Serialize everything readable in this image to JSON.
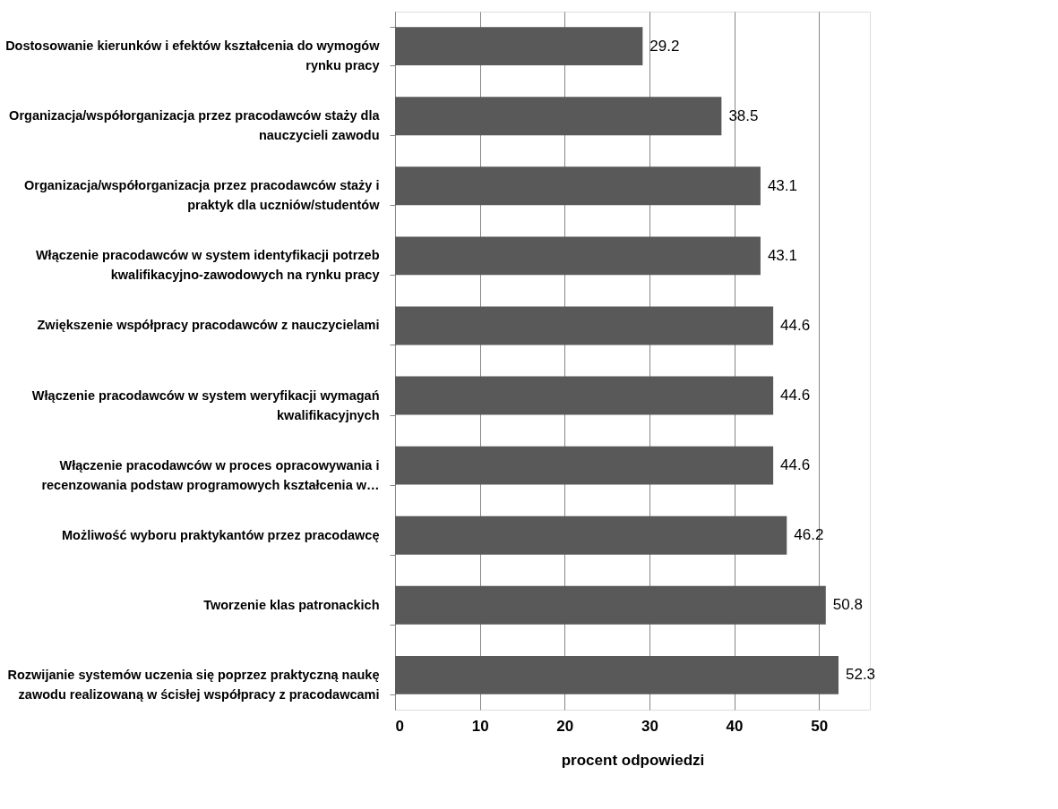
{
  "chart_data": {
    "type": "bar",
    "orientation": "horizontal",
    "xlabel": "procent odpowiedzi",
    "categories": [
      "Dostosowanie kierunków i efektów kształcenia do wymogów\nrynku pracy",
      "Organizacja/współorganizacja przez pracodawców staży dla\nnauczycieli zawodu",
      "Organizacja/współorganizacja przez pracodawców staży i\npraktyk dla uczniów/studentów",
      "Włączenie pracodawców w system identyfikacji potrzeb\nkwalifikacyjno-zawodowych na rynku pracy",
      "Zwiększenie współpracy pracodawców z nauczycielami",
      "Włączenie pracodawców w system weryfikacji wymagań\nkwalifikacyjnych",
      "Włączenie pracodawców w proces opracowywania i\nrecenzowania podstaw programowych kształcenia w…",
      "Możliwość wyboru praktykantów przez pracodawcę",
      "Tworzenie klas patronackich",
      "Rozwijanie systemów uczenia się poprzez praktyczną naukę\nzawodu realizowaną w ścisłej współpracy z pracodawcami"
    ],
    "values": [
      29.2,
      38.5,
      43.1,
      43.1,
      44.6,
      44.6,
      44.6,
      46.2,
      50.8,
      52.3
    ],
    "color": "#595959",
    "xlim": [
      0,
      56
    ],
    "xticks": [
      0,
      10,
      20,
      30,
      40,
      50
    ],
    "grid": "x",
    "data_labels": true
  }
}
